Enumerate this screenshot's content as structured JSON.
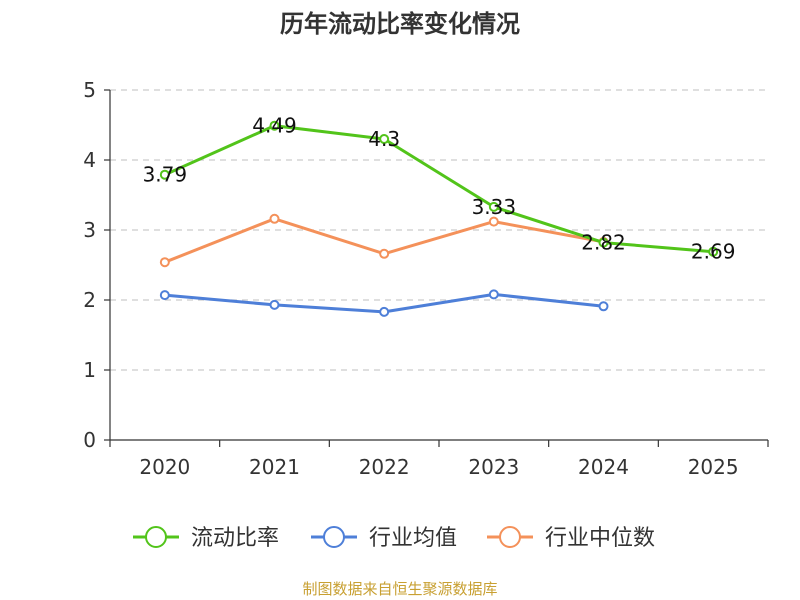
{
  "chart_data": {
    "type": "line",
    "title": "历年流动比率变化情况",
    "categories": [
      "2020",
      "2021",
      "2022",
      "2023",
      "2024",
      "2025"
    ],
    "ylim": [
      0,
      5
    ],
    "yticks": [
      "0",
      "1",
      "2",
      "3",
      "4",
      "5"
    ],
    "grid": true,
    "legend_position": "bottom",
    "series": [
      {
        "name": "流动比率",
        "color": "#52c41a",
        "values": [
          3.79,
          4.49,
          4.3,
          3.33,
          2.82,
          2.69
        ],
        "show_labels": true
      },
      {
        "name": "行业均值",
        "color": "#4e7fd8",
        "values": [
          2.07,
          1.93,
          1.83,
          2.08,
          1.91,
          null
        ],
        "show_labels": false
      },
      {
        "name": "行业中位数",
        "color": "#f4915a",
        "values": [
          2.54,
          3.16,
          2.66,
          3.12,
          2.83,
          null
        ],
        "show_labels": false
      }
    ]
  },
  "source": "制图数据来自恒生聚源数据库"
}
